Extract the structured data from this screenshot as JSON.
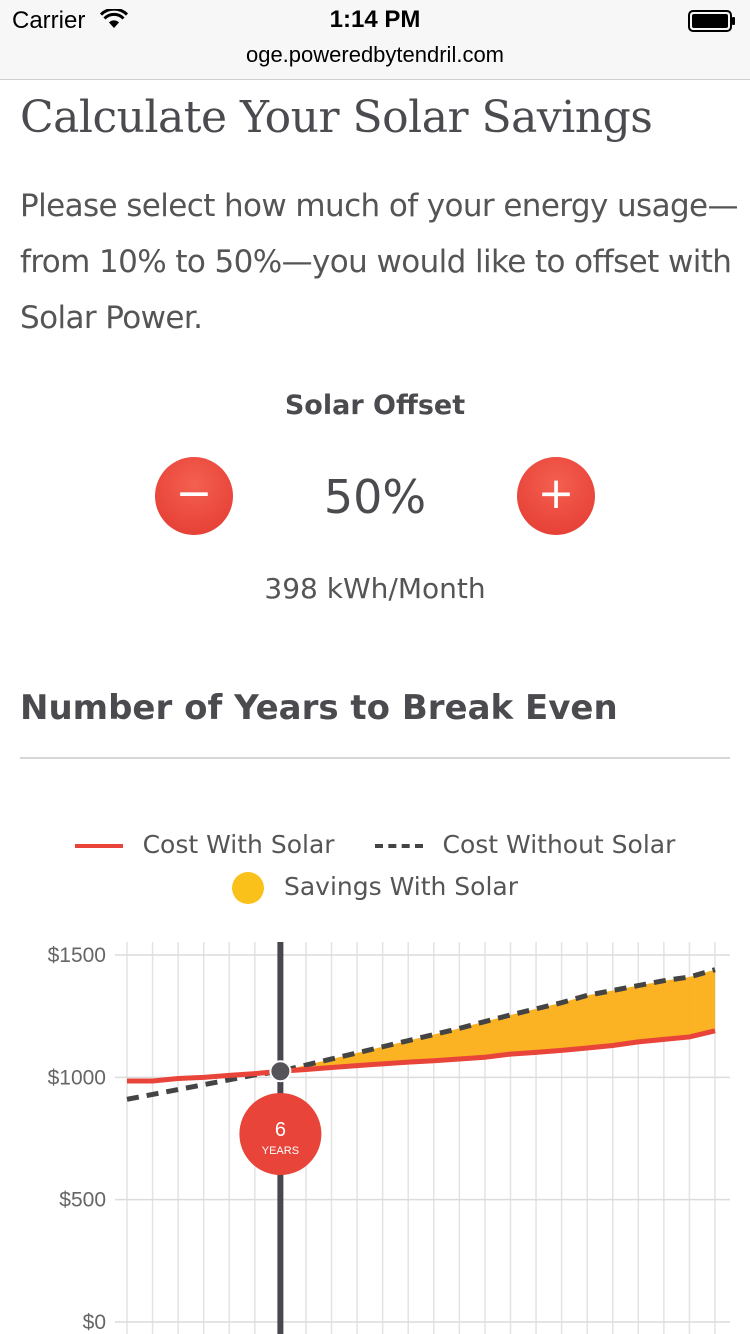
{
  "status_bar": {
    "carrier": "Carrier",
    "time": "1:14 PM",
    "url": "oge.poweredbytendril.com",
    "icons": [
      "wifi-icon",
      "battery-icon"
    ]
  },
  "page": {
    "title": "Calculate Your Solar Savings",
    "intro": "Please select how much of your energy usage—from 10% to 50%—you would like to offset with Solar Power."
  },
  "offset": {
    "label": "Solar Offset",
    "value": "50%",
    "minus_label": "−",
    "plus_label": "+",
    "kwh": "398 kWh/Month"
  },
  "section": {
    "title": "Number of Years to Break Even"
  },
  "legend": {
    "cost_with_solar": "Cost With Solar",
    "cost_without_solar": "Cost Without Solar",
    "savings_with_solar": "Savings With Solar"
  },
  "colors": {
    "accent_red": "#e8443a",
    "dashed_line": "#444444",
    "savings_fill": "#fbaf18"
  },
  "chart_data": {
    "type": "line",
    "ylim": [
      0,
      1500
    ],
    "yticks": [
      "$1500",
      "$1000",
      "$500",
      "$0"
    ],
    "ytick_values": [
      1500,
      1000,
      500,
      0
    ],
    "x": [
      0,
      1,
      2,
      3,
      4,
      5,
      6,
      7,
      8,
      9,
      10,
      11,
      12,
      13,
      14,
      15,
      16,
      17,
      18,
      19,
      20,
      21,
      22,
      23
    ],
    "series": [
      {
        "name": "Cost With Solar",
        "values": [
          985,
          985,
          995,
          1000,
          1008,
          1015,
          1025,
          1032,
          1040,
          1048,
          1055,
          1062,
          1068,
          1075,
          1082,
          1095,
          1102,
          1110,
          1120,
          1130,
          1145,
          1155,
          1165,
          1190
        ]
      },
      {
        "name": "Cost Without Solar",
        "values": [
          910,
          930,
          950,
          970,
          990,
          1010,
          1025,
          1050,
          1075,
          1100,
          1125,
          1150,
          1175,
          1200,
          1228,
          1255,
          1280,
          1305,
          1335,
          1355,
          1375,
          1395,
          1410,
          1440
        ]
      }
    ],
    "break_even": {
      "x": 6,
      "value": "6",
      "unit": "YEARS"
    }
  }
}
